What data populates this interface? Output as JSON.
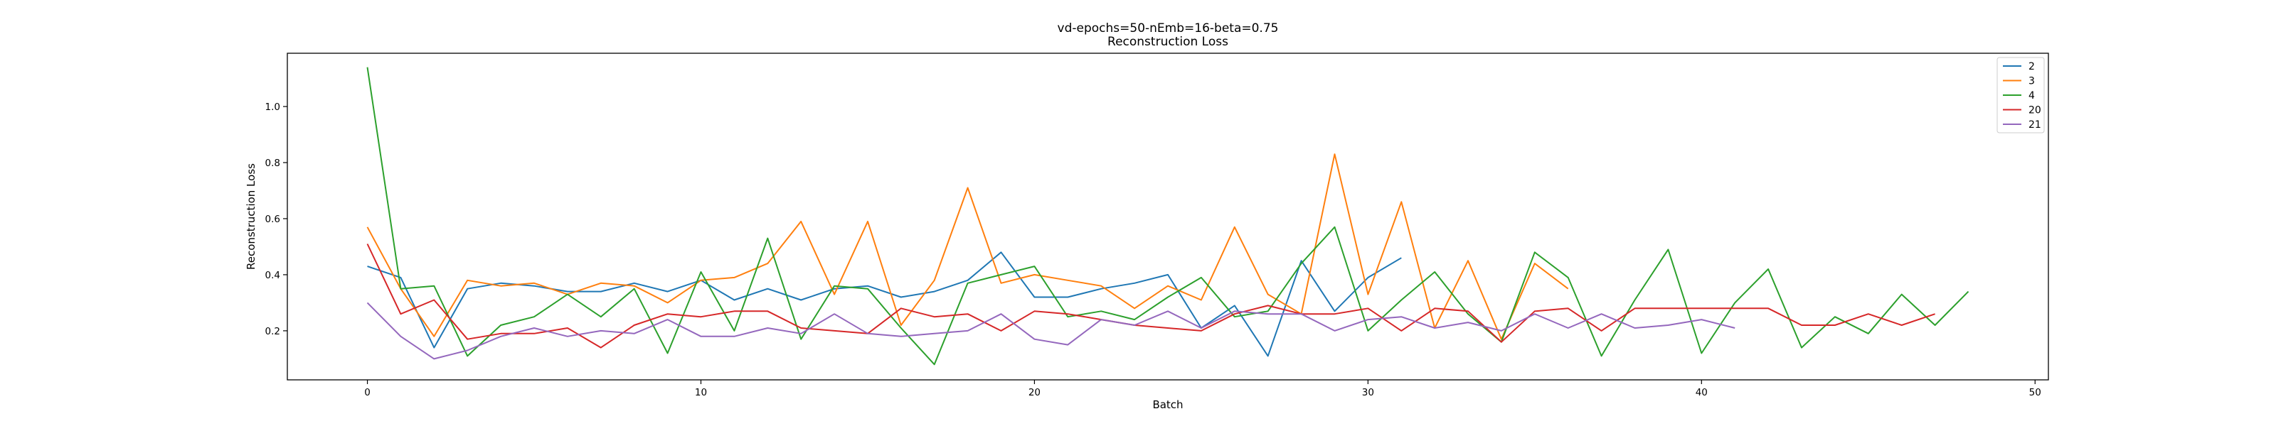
{
  "chart_data": {
    "type": "line",
    "title": "vd-epochs=50-nEmb=16-beta=0.75",
    "subtitle": "Reconstruction Loss",
    "xlabel": "Batch",
    "ylabel": "Reconstruction Loss",
    "xlim": [
      -2.4,
      50.4
    ],
    "ylim": [
      0.025,
      1.19
    ],
    "xticks": [
      0,
      10,
      20,
      30,
      40,
      50
    ],
    "yticks": [
      0.2,
      0.4,
      0.6,
      0.8,
      1.0
    ],
    "ytick_labels": [
      "0.2",
      "0.4",
      "0.6",
      "0.8",
      "1.0"
    ],
    "grid": false,
    "legend_position": "top-right",
    "series": [
      {
        "name": "2",
        "color": "#1f77b4",
        "values": [
          0.43,
          0.39,
          0.14,
          0.35,
          0.37,
          0.36,
          0.34,
          0.34,
          0.37,
          0.34,
          0.38,
          0.31,
          0.35,
          0.31,
          0.35,
          0.36,
          0.32,
          0.34,
          0.38,
          0.48,
          0.32,
          0.32,
          0.35,
          0.37,
          0.4,
          0.21,
          0.29,
          0.11,
          0.45,
          0.27,
          0.39,
          0.46
        ]
      },
      {
        "name": "3",
        "color": "#ff7f0e",
        "values": [
          0.57,
          0.35,
          0.18,
          0.38,
          0.36,
          0.37,
          0.33,
          0.37,
          0.36,
          0.3,
          0.38,
          0.39,
          0.44,
          0.59,
          0.33,
          0.59,
          0.22,
          0.38,
          0.71,
          0.37,
          0.4,
          0.38,
          0.36,
          0.28,
          0.36,
          0.31,
          0.57,
          0.33,
          0.26,
          0.83,
          0.33,
          0.66,
          0.21,
          0.45,
          0.17,
          0.44,
          0.35
        ]
      },
      {
        "name": "4",
        "color": "#2ca02c",
        "values": [
          1.14,
          0.35,
          0.36,
          0.11,
          0.22,
          0.25,
          0.33,
          0.25,
          0.35,
          0.12,
          0.41,
          0.2,
          0.53,
          0.17,
          0.36,
          0.35,
          0.21,
          0.08,
          0.37,
          0.4,
          0.43,
          0.25,
          0.27,
          0.24,
          0.32,
          0.39,
          0.25,
          0.27,
          0.44,
          0.57,
          0.2,
          0.31,
          0.41,
          0.26,
          0.16,
          0.48,
          0.39,
          0.11,
          0.31,
          0.49,
          0.12,
          0.3,
          0.42,
          0.14,
          0.25,
          0.19,
          0.33,
          0.22,
          0.34
        ]
      },
      {
        "name": "20",
        "color": "#d62728",
        "values": [
          0.51,
          0.26,
          0.31,
          0.17,
          0.19,
          0.19,
          0.21,
          0.14,
          0.22,
          0.26,
          0.25,
          0.27,
          0.27,
          0.21,
          0.2,
          0.19,
          0.28,
          0.25,
          0.26,
          0.2,
          0.27,
          0.26,
          0.24,
          0.22,
          0.21,
          0.2,
          0.26,
          0.29,
          0.26,
          0.26,
          0.28,
          0.2,
          0.28,
          0.27,
          0.16,
          0.27,
          0.28,
          0.2,
          0.28,
          0.28,
          0.28,
          0.28,
          0.28,
          0.22,
          0.22,
          0.26,
          0.22,
          0.26
        ]
      },
      {
        "name": "21",
        "color": "#9467bd",
        "values": [
          0.3,
          0.18,
          0.1,
          0.13,
          0.18,
          0.21,
          0.18,
          0.2,
          0.19,
          0.24,
          0.18,
          0.18,
          0.21,
          0.19,
          0.26,
          0.19,
          0.18,
          0.19,
          0.2,
          0.26,
          0.17,
          0.15,
          0.24,
          0.22,
          0.27,
          0.21,
          0.27,
          0.26,
          0.26,
          0.2,
          0.24,
          0.25,
          0.21,
          0.23,
          0.2,
          0.26,
          0.21,
          0.26,
          0.21,
          0.22,
          0.24,
          0.21
        ]
      }
    ]
  }
}
